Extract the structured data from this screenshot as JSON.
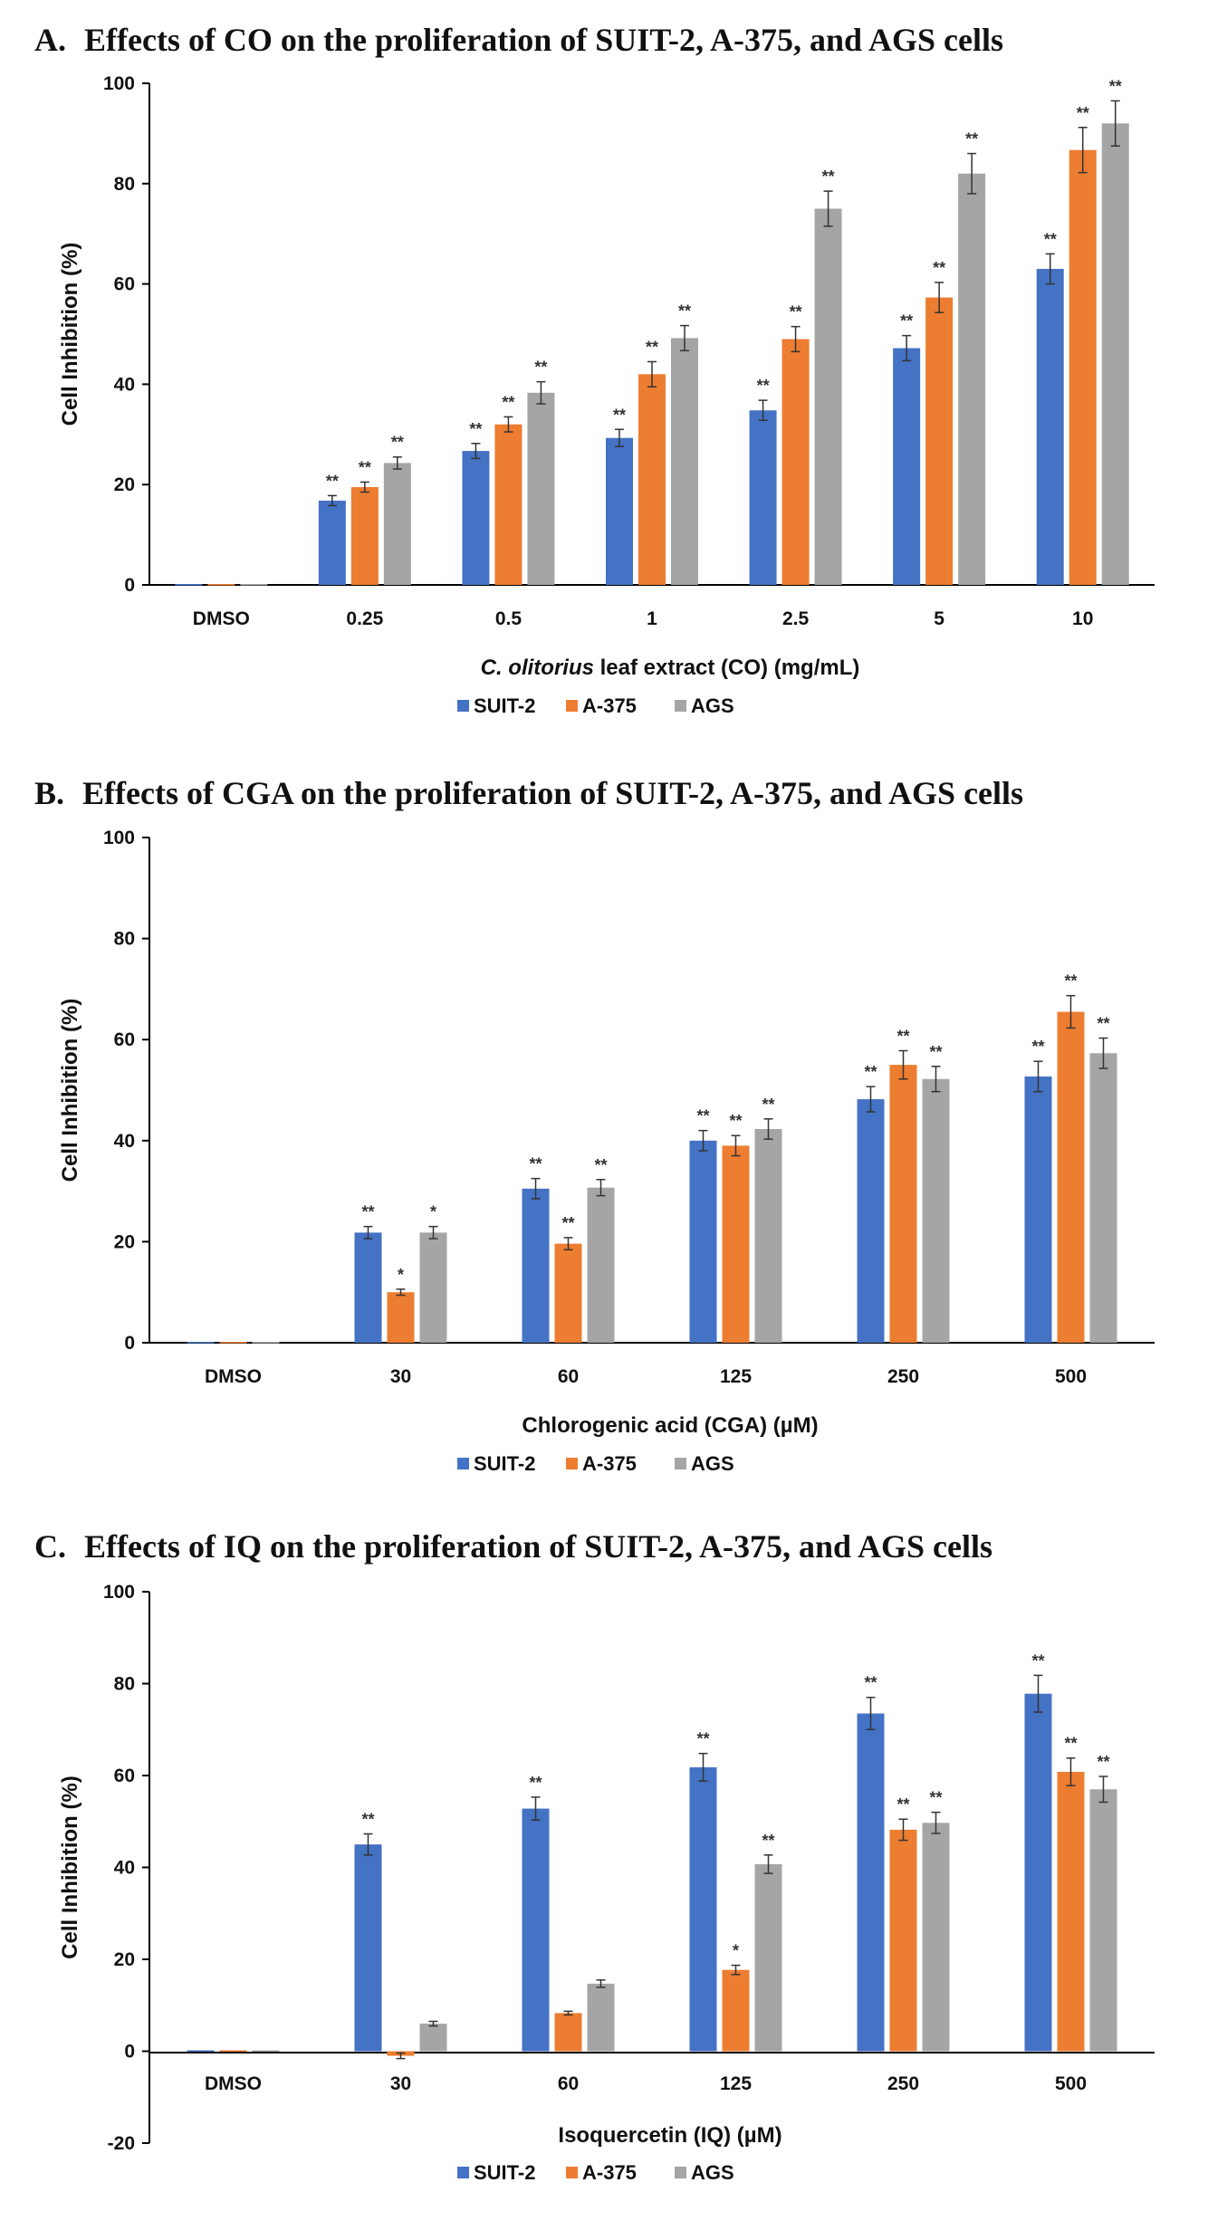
{
  "colors": {
    "SUIT-2": "#4472C4",
    "A-375": "#ED7D31",
    "AGS": "#A5A5A5",
    "axis": "#000000",
    "error": "#333333"
  },
  "chart_data": [
    {
      "type": "bar",
      "panel": "A.",
      "title": "Effects of CO on the proliferation of SUIT-2, A-375, and AGS cells",
      "xlabel_italic": "C. olitorius",
      "xlabel_rest": " leaf extract (CO) (mg/mL)",
      "ylabel": "Cell Inhibition (%)",
      "ylim": [
        0,
        100
      ],
      "yticks": [
        0,
        20,
        40,
        60,
        80,
        100
      ],
      "categories": [
        "DMSO",
        "0.25",
        "0.5",
        "1",
        "2.5",
        "5",
        "10"
      ],
      "legend": [
        "SUIT-2",
        "A-375",
        "AGS"
      ],
      "series": [
        {
          "name": "SUIT-2",
          "values": [
            0,
            16.8,
            26.7,
            29.3,
            34.8,
            47.2,
            63
          ],
          "errors": [
            0,
            1,
            1.5,
            1.7,
            2,
            2.5,
            3
          ],
          "sig": [
            "",
            "**",
            "**",
            "**",
            "**",
            "**",
            "**"
          ]
        },
        {
          "name": "A-375",
          "values": [
            0,
            19.5,
            32,
            42,
            49,
            57.3,
            86.7
          ],
          "errors": [
            0,
            1,
            1.5,
            2.5,
            2.5,
            3,
            4.5
          ],
          "sig": [
            "",
            "**",
            "**",
            "**",
            "**",
            "**",
            "**"
          ]
        },
        {
          "name": "AGS",
          "values": [
            0,
            24.3,
            38.3,
            49.2,
            75,
            82,
            92
          ],
          "errors": [
            0,
            1.2,
            2.2,
            2.5,
            3.5,
            4,
            4.5
          ],
          "sig": [
            "",
            "**",
            "**",
            "**",
            "**",
            "**",
            "**"
          ]
        }
      ]
    },
    {
      "type": "bar",
      "panel": "B.",
      "title": "Effects of CGA on the proliferation of SUIT-2, A-375, and AGS cells",
      "xlabel_italic": "",
      "xlabel_rest": "Chlorogenic acid (CGA) (µM)",
      "ylabel": "Cell Inhibition (%)",
      "ylim": [
        0,
        100
      ],
      "yticks": [
        0,
        20,
        40,
        60,
        80,
        100
      ],
      "categories": [
        "DMSO",
        "30",
        "60",
        "125",
        "250",
        "500"
      ],
      "legend": [
        "SUIT-2",
        "A-375",
        "AGS"
      ],
      "series": [
        {
          "name": "SUIT-2",
          "values": [
            0,
            21.8,
            30.5,
            40,
            48.2,
            52.7
          ],
          "errors": [
            0,
            1.2,
            2,
            2,
            2.5,
            3
          ],
          "sig": [
            "",
            "**",
            "**",
            "**",
            "**",
            "**"
          ]
        },
        {
          "name": "A-375",
          "values": [
            0,
            10,
            19.6,
            39,
            55,
            65.5
          ],
          "errors": [
            0,
            0.6,
            1.2,
            2,
            2.8,
            3.2
          ],
          "sig": [
            "",
            "*",
            "**",
            "**",
            "**",
            "**"
          ]
        },
        {
          "name": "AGS",
          "values": [
            0,
            21.8,
            30.7,
            42.3,
            52.2,
            57.3
          ],
          "errors": [
            0,
            1.2,
            1.6,
            2,
            2.5,
            3
          ],
          "sig": [
            "",
            "*",
            "**",
            "**",
            "**",
            "**"
          ]
        }
      ]
    },
    {
      "type": "bar",
      "panel": "C.",
      "title": "Effects of IQ on the proliferation of SUIT-2, A-375, and AGS cells",
      "xlabel_italic": "",
      "xlabel_rest": "Isoquercetin (IQ) (µM)",
      "ylabel": "Cell Inhibition (%)",
      "ylim": [
        -20,
        100
      ],
      "yticks": [
        -20,
        0,
        20,
        40,
        60,
        80,
        100
      ],
      "categories": [
        "DMSO",
        "30",
        "60",
        "125",
        "250",
        "500"
      ],
      "legend": [
        "SUIT-2",
        "A-375",
        "AGS"
      ],
      "series": [
        {
          "name": "SUIT-2",
          "values": [
            0,
            45,
            52.8,
            61.8,
            73.5,
            77.8
          ],
          "errors": [
            0,
            2.3,
            2.5,
            3,
            3.5,
            4
          ],
          "sig": [
            "",
            "**",
            "**",
            "**",
            "**",
            "**"
          ]
        },
        {
          "name": "A-375",
          "values": [
            0,
            -1,
            8.3,
            17.7,
            48.2,
            60.8
          ],
          "errors": [
            0,
            0.6,
            0.4,
            1,
            2.3,
            3
          ],
          "sig": [
            "",
            "",
            "",
            "*",
            "**",
            "**"
          ]
        },
        {
          "name": "AGS",
          "values": [
            0,
            6,
            14.7,
            40.7,
            49.7,
            57
          ],
          "errors": [
            0,
            0.5,
            0.8,
            2,
            2.3,
            2.8
          ],
          "sig": [
            "",
            "",
            "",
            "**",
            "**",
            "**"
          ]
        }
      ]
    }
  ]
}
